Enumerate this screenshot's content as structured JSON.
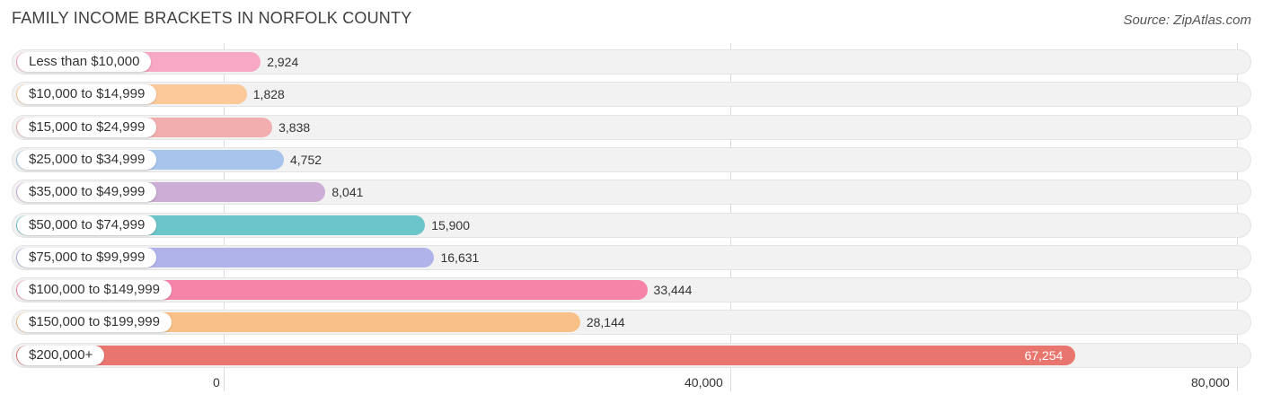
{
  "title": "FAMILY INCOME BRACKETS IN NORFOLK COUNTY",
  "source": "Source: ZipAtlas.com",
  "colors": {
    "row_background": "#f2f2f2",
    "gridline": "#dcdcdc"
  },
  "chart_data": {
    "type": "bar",
    "orientation": "horizontal",
    "title": "FAMILY INCOME BRACKETS IN NORFOLK COUNTY",
    "xlim": [
      0,
      80000
    ],
    "x_ticks": [
      0,
      40000,
      80000
    ],
    "x_tick_labels": [
      "0",
      "40,000",
      "80,000"
    ],
    "grid": true,
    "categories": [
      "Less than $10,000",
      "$10,000 to $14,999",
      "$15,000 to $24,999",
      "$25,000 to $34,999",
      "$35,000 to $49,999",
      "$50,000 to $74,999",
      "$75,000 to $99,999",
      "$100,000 to $149,999",
      "$150,000 to $199,999",
      "$200,000+"
    ],
    "values": [
      2924,
      1828,
      3838,
      4752,
      8041,
      15900,
      16631,
      33444,
      28144,
      67254
    ],
    "value_labels": [
      "2,924",
      "1,828",
      "3,838",
      "4,752",
      "8,041",
      "15,900",
      "16,631",
      "33,444",
      "28,144",
      "67,254"
    ],
    "bar_colors": [
      "#f7a8c4",
      "#fbc99a",
      "#f2aeae",
      "#a7c5ec",
      "#cbadd5",
      "#6cc5c9",
      "#afb3ea",
      "#f584a8",
      "#f9c188",
      "#e8756e"
    ]
  }
}
